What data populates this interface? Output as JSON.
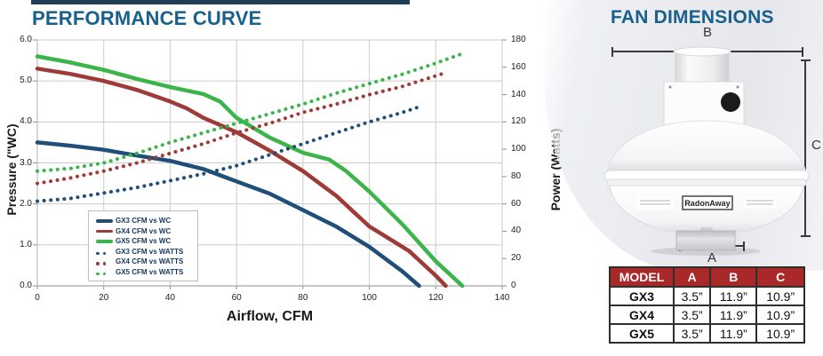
{
  "performance": {
    "title": "PERFORMANCE CURVE"
  },
  "fan": {
    "title": "FAN DIMENSIONS",
    "dim_a": "A",
    "dim_b": "B",
    "dim_c": "C",
    "brand": "RadonAway"
  },
  "table": {
    "headers": [
      "MODEL",
      "A",
      "B",
      "C"
    ],
    "rows": [
      [
        "GX3",
        "3.5”",
        "11.9”",
        "10.9”"
      ],
      [
        "GX4",
        "3.5”",
        "11.9”",
        "10.9”"
      ],
      [
        "GX5",
        "3.5”",
        "11.9”",
        "10.9”"
      ]
    ]
  },
  "colors": {
    "accent_blue": "#19618C",
    "table_header_red": "#A9292B",
    "gx3_blue": "#1F4E79",
    "gx4_red": "#9E3B38",
    "gx5_green": "#3BB54A"
  },
  "chart_data": {
    "type": "line",
    "title": "PERFORMANCE CURVE",
    "xlabel": "Airflow, CFM",
    "ylabel_left": "Pressure (\"WC)",
    "ylabel_right": "Power (Watts)",
    "xlim": [
      0,
      140
    ],
    "ylim_left": [
      0,
      6
    ],
    "ylim_right": [
      0,
      180
    ],
    "x_ticks": [
      0,
      20,
      40,
      60,
      80,
      100,
      120,
      140
    ],
    "y_ticks_left": [
      "0.0",
      "1.0",
      "2.0",
      "3.0",
      "4.0",
      "5.0",
      "6.0"
    ],
    "y_ticks_right": [
      0,
      20,
      40,
      60,
      80,
      100,
      120,
      140,
      160,
      180
    ],
    "grid": true,
    "legend_position": "inside-bottom-left",
    "series": [
      {
        "name": "GX3 CFM vs WC",
        "axis": "left",
        "style": "solid",
        "color": "#1F4E79",
        "points": [
          [
            0,
            3.5
          ],
          [
            10,
            3.42
          ],
          [
            20,
            3.32
          ],
          [
            30,
            3.18
          ],
          [
            40,
            3.05
          ],
          [
            50,
            2.85
          ],
          [
            60,
            2.55
          ],
          [
            70,
            2.25
          ],
          [
            80,
            1.85
          ],
          [
            90,
            1.45
          ],
          [
            100,
            0.95
          ],
          [
            110,
            0.35
          ],
          [
            115,
            0
          ]
        ]
      },
      {
        "name": "GX4 CFM vs WC",
        "axis": "left",
        "style": "solid",
        "color": "#9E3B38",
        "points": [
          [
            0,
            5.3
          ],
          [
            10,
            5.17
          ],
          [
            20,
            5.0
          ],
          [
            30,
            4.78
          ],
          [
            40,
            4.5
          ],
          [
            45,
            4.33
          ],
          [
            50,
            4.1
          ],
          [
            60,
            3.75
          ],
          [
            70,
            3.3
          ],
          [
            80,
            2.8
          ],
          [
            90,
            2.2
          ],
          [
            100,
            1.45
          ],
          [
            107,
            1.1
          ],
          [
            112,
            0.85
          ],
          [
            120,
            0.25
          ],
          [
            123,
            0
          ]
        ]
      },
      {
        "name": "GX5 CFM vs WC",
        "axis": "left",
        "style": "solid",
        "color": "#3BB54A",
        "points": [
          [
            0,
            5.6
          ],
          [
            10,
            5.45
          ],
          [
            20,
            5.27
          ],
          [
            30,
            5.05
          ],
          [
            40,
            4.85
          ],
          [
            50,
            4.68
          ],
          [
            55,
            4.5
          ],
          [
            60,
            4.1
          ],
          [
            70,
            3.62
          ],
          [
            80,
            3.25
          ],
          [
            88,
            3.08
          ],
          [
            93,
            2.8
          ],
          [
            100,
            2.3
          ],
          [
            110,
            1.5
          ],
          [
            120,
            0.6
          ],
          [
            128,
            0
          ]
        ]
      },
      {
        "name": "GX3 CFM vs WATTS",
        "axis": "right",
        "style": "dotted",
        "color": "#1F4E79",
        "points": [
          [
            0,
            62
          ],
          [
            10,
            64
          ],
          [
            20,
            68
          ],
          [
            30,
            72
          ],
          [
            40,
            77
          ],
          [
            50,
            82
          ],
          [
            60,
            88
          ],
          [
            70,
            96
          ],
          [
            80,
            104
          ],
          [
            90,
            112
          ],
          [
            100,
            120
          ],
          [
            110,
            127
          ],
          [
            115,
            131
          ]
        ]
      },
      {
        "name": "GX4 CFM vs WATTS",
        "axis": "right",
        "style": "dotted",
        "color": "#9E3B38",
        "points": [
          [
            0,
            75
          ],
          [
            10,
            79
          ],
          [
            20,
            84
          ],
          [
            30,
            90
          ],
          [
            40,
            97
          ],
          [
            50,
            104
          ],
          [
            60,
            112
          ],
          [
            70,
            119
          ],
          [
            80,
            127
          ],
          [
            90,
            133
          ],
          [
            100,
            140
          ],
          [
            110,
            146
          ],
          [
            123,
            156
          ]
        ]
      },
      {
        "name": "GX5 CFM vs WATTS",
        "axis": "right",
        "style": "dotted",
        "color": "#3BB54A",
        "points": [
          [
            0,
            84
          ],
          [
            10,
            86
          ],
          [
            20,
            90
          ],
          [
            30,
            97
          ],
          [
            40,
            105
          ],
          [
            50,
            112
          ],
          [
            60,
            119
          ],
          [
            70,
            126
          ],
          [
            80,
            133
          ],
          [
            90,
            141
          ],
          [
            100,
            148
          ],
          [
            110,
            155
          ],
          [
            120,
            163
          ],
          [
            128,
            170
          ]
        ]
      }
    ]
  }
}
